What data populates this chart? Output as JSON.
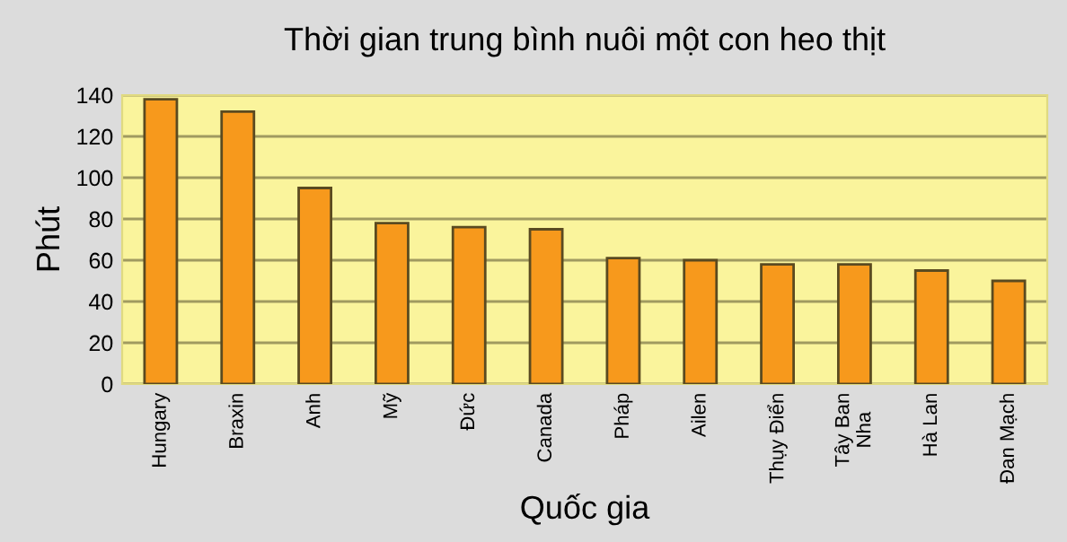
{
  "chart_data": {
    "type": "bar",
    "title": "Thời gian trung bình nuôi một con heo thịt",
    "xlabel": "Quốc gia",
    "ylabel": "Phút",
    "categories": [
      "Hungary",
      "Braxin",
      "Anh",
      "Mỹ",
      "Đức",
      "Canada",
      "Pháp",
      "Ailen",
      "Thụy Điển",
      "Tây Ban\nNha",
      "Hà Lan",
      "Đan Mạch"
    ],
    "values": [
      138,
      132,
      95,
      78,
      76,
      75,
      61,
      60,
      58,
      58,
      55,
      50
    ],
    "color": "#f7991c",
    "ylim": [
      0,
      140
    ],
    "yticks": [
      0,
      20,
      40,
      60,
      80,
      100,
      120,
      140
    ],
    "grid": "y",
    "legend": false
  }
}
